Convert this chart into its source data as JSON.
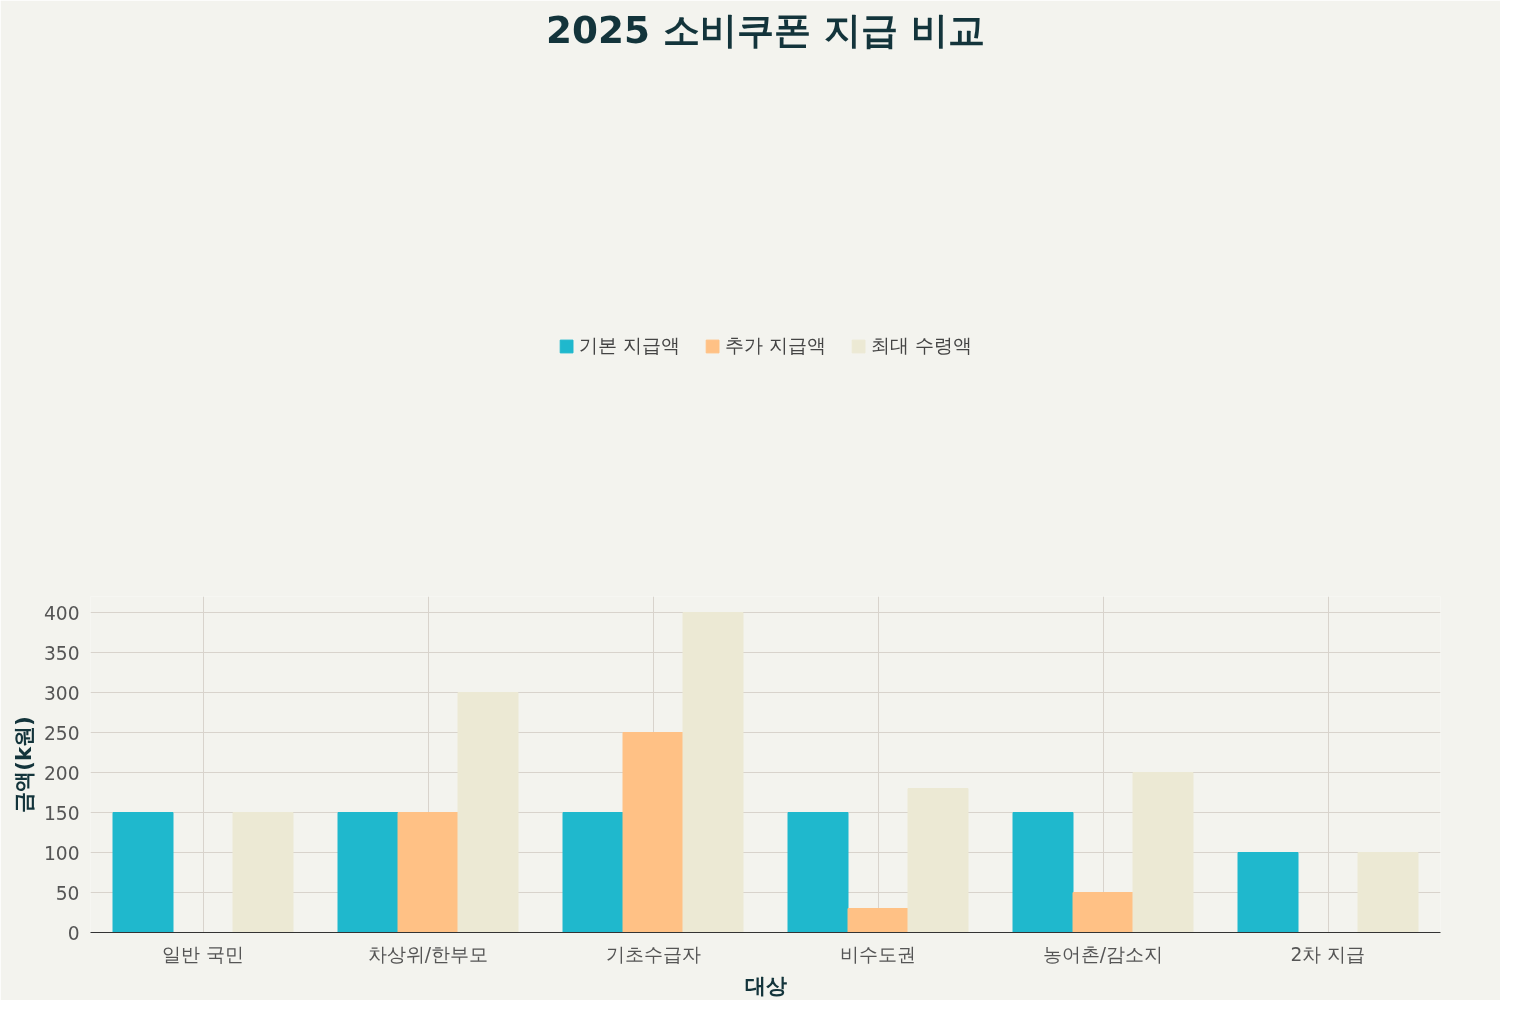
{
  "chart_data": {
    "type": "bar",
    "title": "2025 소비쿠폰 지급 비교",
    "xlabel": "대상",
    "ylabel": "금액(k원)",
    "categories": [
      "일반 국민",
      "차상위/한부모",
      "기초수급자",
      "비수도권",
      "농어촌/감소지",
      "2차 지급"
    ],
    "series": [
      {
        "name": "기본 지급액",
        "color": "#1fb8cd",
        "values": [
          150,
          150,
          150,
          150,
          150,
          100
        ]
      },
      {
        "name": "추가 지급액",
        "color": "#ffc185",
        "values": [
          0,
          150,
          250,
          30,
          50,
          0
        ]
      },
      {
        "name": "최대 수령액",
        "color": "#ece9d4",
        "values": [
          150,
          300,
          400,
          180,
          200,
          100
        ]
      }
    ],
    "ylim": [
      0,
      420
    ],
    "yticks": [
      0,
      50,
      100,
      150,
      200,
      250,
      300,
      350,
      400
    ],
    "grid": true,
    "legend": "top"
  }
}
